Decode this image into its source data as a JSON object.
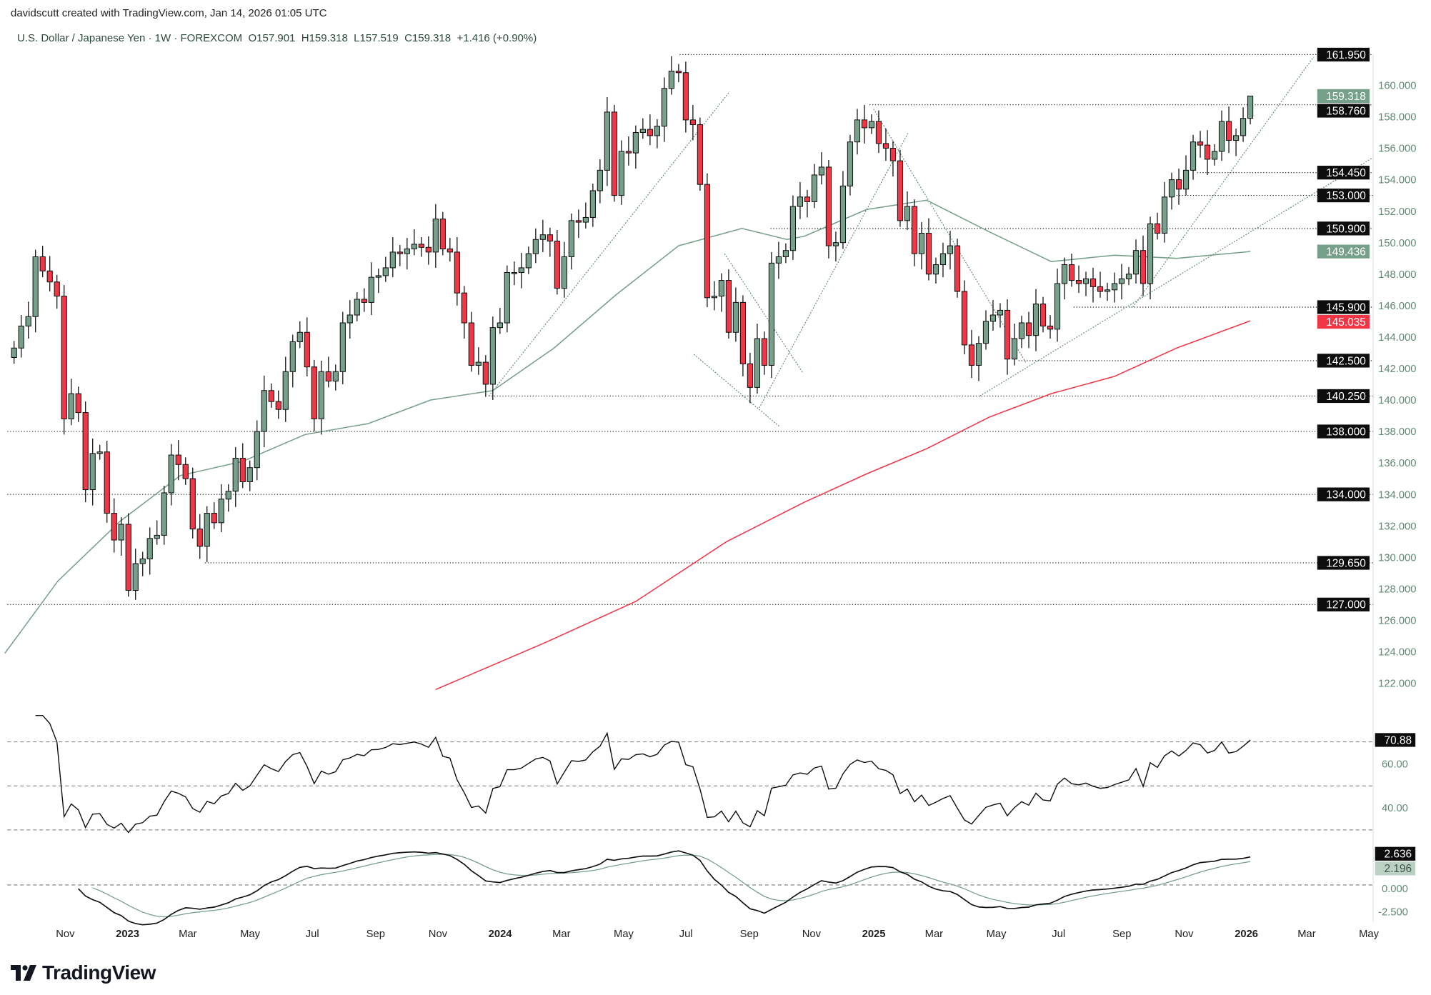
{
  "header": {
    "attribution": "davidscutt created with TradingView.com, Jan 14, 2026 01:05 UTC",
    "symbol": "U.S. Dollar / Japanese Yen",
    "separator": "·",
    "interval": "1W",
    "exchange": "FOREXCOM",
    "open": "O157.901",
    "high": "H159.318",
    "low": "L157.519",
    "close": "C159.318",
    "change": "+1.416 (+0.90%)"
  },
  "brand": "TradingView",
  "colors": {
    "up": "#76a08a",
    "down": "#f23645",
    "outline": "#111111",
    "axis_text": "#5f8a72",
    "ma_fast": "#76a08a",
    "ma_slow": "#f23645",
    "label_dark": "#0d0d0d"
  },
  "time_axis": [
    {
      "label": "Nov",
      "date": "2022-11-01",
      "year": false
    },
    {
      "label": "2023",
      "date": "2023-01-01",
      "year": true
    },
    {
      "label": "Mar",
      "date": "2023-03-01",
      "year": false
    },
    {
      "label": "May",
      "date": "2023-05-01",
      "year": false
    },
    {
      "label": "Jul",
      "date": "2023-07-01",
      "year": false
    },
    {
      "label": "Sep",
      "date": "2023-09-01",
      "year": false
    },
    {
      "label": "Nov",
      "date": "2023-11-01",
      "year": false
    },
    {
      "label": "2024",
      "date": "2024-01-01",
      "year": true
    },
    {
      "label": "Mar",
      "date": "2024-03-01",
      "year": false
    },
    {
      "label": "May",
      "date": "2024-05-01",
      "year": false
    },
    {
      "label": "Jul",
      "date": "2024-07-01",
      "year": false
    },
    {
      "label": "Sep",
      "date": "2024-09-01",
      "year": false
    },
    {
      "label": "Nov",
      "date": "2024-11-01",
      "year": false
    },
    {
      "label": "2025",
      "date": "2025-01-01",
      "year": true
    },
    {
      "label": "Mar",
      "date": "2025-03-01",
      "year": false
    },
    {
      "label": "May",
      "date": "2025-05-01",
      "year": false
    },
    {
      "label": "Jul",
      "date": "2025-07-01",
      "year": false
    },
    {
      "label": "Sep",
      "date": "2025-09-01",
      "year": false
    },
    {
      "label": "Nov",
      "date": "2025-11-01",
      "year": false
    },
    {
      "label": "2026",
      "date": "2026-01-01",
      "year": true
    },
    {
      "label": "Mar",
      "date": "2026-03-01",
      "year": false
    },
    {
      "label": "May",
      "date": "2026-05-01",
      "year": false
    }
  ],
  "chart_data": [
    {
      "type": "candlestick",
      "pane": "price",
      "interval": "1W",
      "last_bar_date": "2026-01-12",
      "last_bar": {
        "open": 157.901,
        "high": 159.318,
        "low": 157.519,
        "close": 159.318
      },
      "closes": [
        143.3,
        144.7,
        145.3,
        149.1,
        148.2,
        147.5,
        146.6,
        138.8,
        140.4,
        139.2,
        134.3,
        136.6,
        136.7,
        132.8,
        131.1,
        132.1,
        127.9,
        129.6,
        129.9,
        131.2,
        131.4,
        134.1,
        136.5,
        135.9,
        135.0,
        131.8,
        130.7,
        132.8,
        132.2,
        133.7,
        134.2,
        136.3,
        134.8,
        135.7,
        138.0,
        140.6,
        139.9,
        139.4,
        141.8,
        143.7,
        144.3,
        142.1,
        138.8,
        141.8,
        141.2,
        141.8,
        144.9,
        145.4,
        146.4,
        146.2,
        147.8,
        147.9,
        148.4,
        149.4,
        149.3,
        149.6,
        149.9,
        149.7,
        149.4,
        151.5,
        149.6,
        149.4,
        146.8,
        144.9,
        142.2,
        142.4,
        141.0,
        144.6,
        144.9,
        148.1,
        148.1,
        148.4,
        149.3,
        150.2,
        150.5,
        150.1,
        147.1,
        149.1,
        151.4,
        151.3,
        151.6,
        153.3,
        154.6,
        158.3,
        153.0,
        155.8,
        155.7,
        157.0,
        157.2,
        156.8,
        157.4,
        159.8,
        160.9,
        160.8,
        157.8,
        157.5,
        153.7,
        146.5,
        146.6,
        147.6,
        144.3,
        146.2,
        142.3,
        140.8,
        143.9,
        142.2,
        148.7,
        149.1,
        149.5,
        152.3,
        152.9,
        152.6,
        154.3,
        154.8,
        149.8,
        150.0,
        153.6,
        156.4,
        157.8,
        157.3,
        157.7,
        156.3,
        156.0,
        155.2,
        151.4,
        152.3,
        149.3,
        150.6,
        148.0,
        148.6,
        149.3,
        149.8,
        146.9,
        143.5,
        142.2,
        143.6,
        145.0,
        145.4,
        145.7,
        142.6,
        143.9,
        144.9,
        144.1,
        146.1,
        144.7,
        144.5,
        147.4,
        148.6,
        147.6,
        147.4,
        147.7,
        147.2,
        146.9,
        147.0,
        147.4,
        147.7,
        148.0,
        149.5,
        147.4,
        151.2,
        150.6,
        152.9,
        154.0,
        153.4,
        154.6,
        156.4,
        156.2,
        155.3,
        155.8,
        157.7,
        156.5,
        156.8,
        157.9,
        159.318
      ],
      "y_range": [
        121,
        163.2
      ],
      "price_ticks": [
        "122.000",
        "124.000",
        "126.000",
        "128.000",
        "130.000",
        "132.000",
        "134.000",
        "136.000",
        "138.000",
        "140.000",
        "142.000",
        "144.000",
        "146.000",
        "148.000",
        "150.000",
        "152.000",
        "154.000",
        "156.000",
        "158.000",
        "160.000"
      ],
      "moving_averages": [
        {
          "role": "fast",
          "color": "#76a08a",
          "points": [
            [
              "2022-09-10",
              123.9
            ],
            [
              "2022-11-01",
              128.5
            ],
            [
              "2023-01-01",
              132.3
            ],
            [
              "2023-03-01",
              135.2
            ],
            [
              "2023-05-01",
              136.1
            ],
            [
              "2023-07-01",
              137.8
            ],
            [
              "2023-09-01",
              138.5
            ],
            [
              "2023-11-01",
              140.0
            ],
            [
              "2024-01-01",
              140.6
            ],
            [
              "2024-03-01",
              143.3
            ],
            [
              "2024-05-01",
              146.7
            ],
            [
              "2024-07-01",
              149.8
            ],
            [
              "2024-09-01",
              150.9
            ],
            [
              "2024-10-15",
              150.2
            ],
            [
              "2024-11-01",
              150.4
            ],
            [
              "2025-01-01",
              152.1
            ],
            [
              "2025-03-01",
              152.7
            ],
            [
              "2025-05-01",
              150.7
            ],
            [
              "2025-07-01",
              148.8
            ],
            [
              "2025-09-01",
              149.2
            ],
            [
              "2025-11-01",
              149.0
            ],
            [
              "2026-01-12",
              149.436
            ]
          ]
        },
        {
          "role": "slow",
          "color": "#f23645",
          "points": [
            [
              "2023-11-06",
              121.6
            ],
            [
              "2024-02-22",
              124.6
            ],
            [
              "2024-05-20",
              127.2
            ],
            [
              "2024-08-17",
              131.0
            ],
            [
              "2024-11-01",
              133.5
            ],
            [
              "2025-01-01",
              135.3
            ],
            [
              "2025-03-01",
              136.9
            ],
            [
              "2025-05-01",
              138.9
            ],
            [
              "2025-07-01",
              140.4
            ],
            [
              "2025-09-01",
              141.5
            ],
            [
              "2025-11-01",
              143.3
            ],
            [
              "2026-01-12",
              145.035
            ]
          ]
        }
      ],
      "horizontal_levels": [
        {
          "value": 161.95,
          "from": "2024-07-02"
        },
        {
          "value": 158.76,
          "from": "2025-01-04"
        },
        {
          "value": 154.45,
          "from": "2025-11-21"
        },
        {
          "value": 153.0,
          "from": "2025-10-29"
        },
        {
          "value": 150.9,
          "from": "2024-09-29"
        },
        {
          "value": 145.9,
          "from": "2025-07-23"
        },
        {
          "value": 142.5,
          "from": "2025-05-30"
        },
        {
          "value": 140.25,
          "from": "2023-12-28"
        },
        {
          "value": 138.0,
          "from": null
        },
        {
          "value": 134.0,
          "from": null
        },
        {
          "value": 129.65,
          "from": "2023-03-25"
        },
        {
          "value": 127.0,
          "from": null
        }
      ],
      "trendlines": [
        {
          "from": [
            "2023-12-28",
            140.25
          ],
          "to": [
            "2024-08-20",
            159.6
          ]
        },
        {
          "from": [
            "2024-07-16",
            142.9
          ],
          "to": [
            "2024-10-08",
            138.3
          ]
        },
        {
          "from": [
            "2024-08-15",
            149.3
          ],
          "to": [
            "2024-10-31",
            141.7
          ]
        },
        {
          "from": [
            "2024-09-18",
            139.5
          ],
          "to": [
            "2025-02-11",
            157.0
          ]
        },
        {
          "from": [
            "2025-01-08",
            158.5
          ],
          "to": [
            "2025-06-06",
            142.4
          ]
        },
        {
          "from": [
            "2025-04-22",
            140.25
          ],
          "to": [
            "2026-05-12",
            155.4
          ]
        },
        {
          "from": [
            "2025-09-19",
            145.9
          ],
          "to": [
            "2026-03-15",
            161.8
          ]
        }
      ],
      "price_labels": [
        {
          "text": "161.950",
          "value": 161.95,
          "style": "level"
        },
        {
          "text": "159.318",
          "value": 159.318,
          "style": "last"
        },
        {
          "text": "158.760",
          "value": 158.76,
          "style": "level"
        },
        {
          "text": "154.450",
          "value": 154.45,
          "style": "level"
        },
        {
          "text": "153.000",
          "value": 153.0,
          "style": "level"
        },
        {
          "text": "150.900",
          "value": 150.9,
          "style": "level"
        },
        {
          "text": "149.436",
          "value": 149.436,
          "style": "ma_fast"
        },
        {
          "text": "145.900",
          "value": 145.9,
          "style": "level"
        },
        {
          "text": "145.035",
          "value": 145.035,
          "style": "ma_slow"
        },
        {
          "text": "142.500",
          "value": 142.5,
          "style": "level"
        },
        {
          "text": "140.250",
          "value": 140.25,
          "style": "level"
        },
        {
          "text": "138.000",
          "value": 138.0,
          "style": "level"
        },
        {
          "text": "134.000",
          "value": 134.0,
          "style": "level"
        },
        {
          "text": "129.650",
          "value": 129.65,
          "style": "level"
        },
        {
          "text": "127.000",
          "value": 127.0,
          "style": "level"
        }
      ]
    },
    {
      "type": "line",
      "pane": "oscillator",
      "levels": [
        70,
        50,
        30
      ],
      "ticks": [
        {
          "text": "60.00",
          "value": 60
        },
        {
          "text": "40.00",
          "value": 40
        }
      ],
      "last_value": {
        "text": "70.88",
        "value": 70.88
      }
    },
    {
      "type": "line",
      "pane": "macd",
      "levels": [
        0
      ],
      "ticks": [
        {
          "text": "0.000",
          "value": 0
        },
        {
          "text": "-2.500",
          "value": -2.5
        }
      ],
      "last_values": [
        {
          "text": "2.636",
          "value": 2.636,
          "style": "line"
        },
        {
          "text": "2.196",
          "value": 2.196,
          "style": "signal"
        }
      ]
    }
  ]
}
